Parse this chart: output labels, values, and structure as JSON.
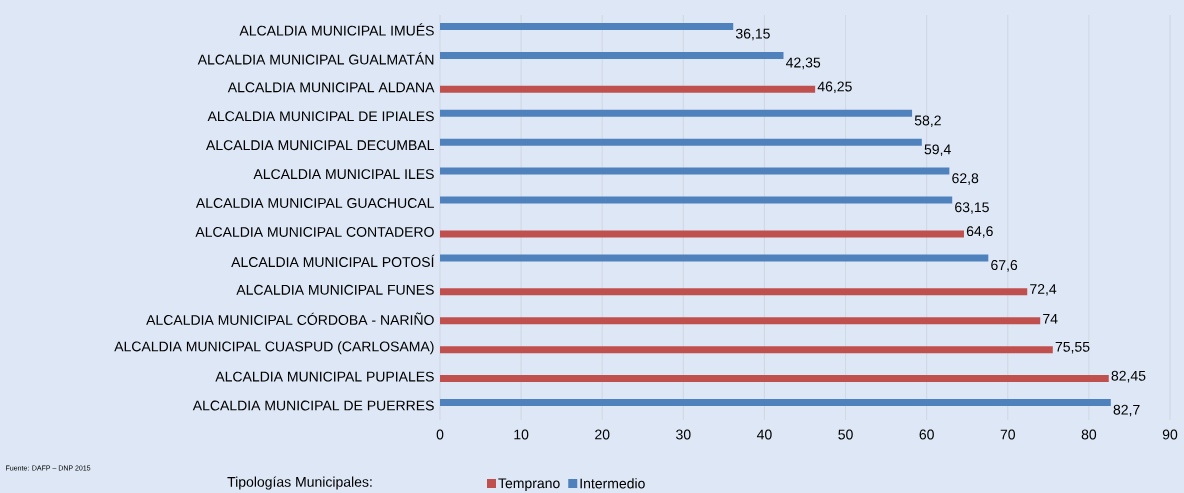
{
  "chart_data": {
    "type": "bar",
    "orientation": "horizontal",
    "categories": [
      "ALCALDIA MUNICIPAL IMUÉS",
      "ALCALDIA MUNICIPAL GUALMATÁN",
      "ALCALDIA MUNICIPAL ALDANA",
      "ALCALDIA MUNICIPAL DE IPIALES",
      "ALCALDIA MUNICIPAL DECUMBAL",
      "ALCALDIA MUNICIPAL ILES",
      "ALCALDIA MUNICIPAL GUACHUCAL",
      "ALCALDIA MUNICIPAL CONTADERO",
      "ALCALDIA MUNICIPAL POTOSÍ",
      "ALCALDIA MUNICIPAL FUNES",
      "ALCALDIA MUNICIPAL CÓRDOBA - NARIÑO",
      "ALCALDIA MUNICIPAL CUASPUD (CARLOSAMA)",
      "ALCALDIA MUNICIPAL PUPIALES",
      "ALCALDIA MUNICIPAL DE PUERRES"
    ],
    "series": [
      {
        "name": "Temprano",
        "color": "#c0504d",
        "values": [
          null,
          null,
          46.25,
          null,
          null,
          null,
          null,
          64.6,
          null,
          72.4,
          74,
          75.55,
          82.45,
          null
        ],
        "value_labels": [
          null,
          null,
          "46,25",
          null,
          null,
          null,
          null,
          "64,6",
          null,
          "72,4",
          "74",
          "75,55",
          "82,45",
          null
        ]
      },
      {
        "name": "Intermedio",
        "color": "#4f81bd",
        "values": [
          36.15,
          42.35,
          null,
          58.2,
          59.4,
          62.8,
          63.15,
          null,
          67.6,
          null,
          null,
          null,
          null,
          82.7
        ],
        "value_labels": [
          "36,15",
          "42,35",
          null,
          "58,2",
          "59,4",
          "62,8",
          "63,15",
          null,
          "67,6",
          null,
          null,
          null,
          null,
          "82,7"
        ]
      }
    ],
    "xlim": [
      0,
      90
    ],
    "xticks": [
      0,
      10,
      20,
      30,
      40,
      50,
      60,
      70,
      80,
      90
    ],
    "grid": "x",
    "legend": "bottom",
    "legend_title": "Tipologías Municipales:",
    "annotations": [
      "Fuente: DAFP – DNP 2015"
    ]
  }
}
